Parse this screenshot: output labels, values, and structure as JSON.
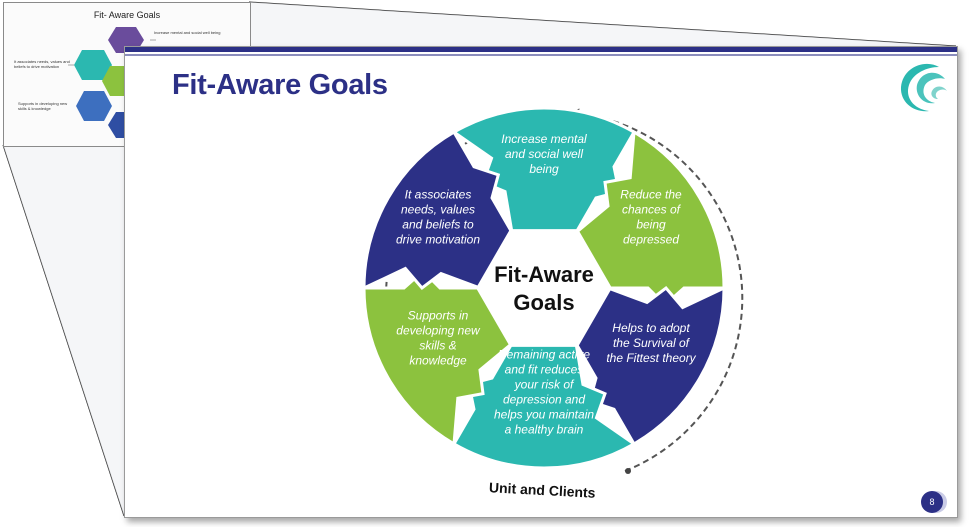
{
  "colors": {
    "navy": "#2c3086",
    "teal": "#2bb8b0",
    "green": "#8cc23e"
  },
  "thumbnail": {
    "title": "Fit- Aware Goals",
    "note_top": "Increase mental and social well being",
    "note_left_1": "It associates needs, values and beliefs to drive motivation",
    "note_left_2": "Supports in developing new skills & knowledge"
  },
  "slide": {
    "title": "Fit-Aware Goals",
    "logo_icon": "swirl-logo-icon",
    "page_number": "8",
    "footer_label": "Unit and Clients"
  },
  "diagram": {
    "center_label": [
      "Fit-Aware",
      "Goals"
    ],
    "segments": [
      {
        "id": "top",
        "color": "teal",
        "lines": [
          "Increase mental",
          "and social well",
          "being"
        ]
      },
      {
        "id": "upper-right",
        "color": "green",
        "lines": [
          "Reduce the",
          "chances of",
          "being",
          "depressed"
        ]
      },
      {
        "id": "lower-right",
        "color": "navy",
        "lines": [
          "Helps to adopt",
          "the Survival of",
          "the Fittest theory"
        ]
      },
      {
        "id": "bottom",
        "color": "teal",
        "lines": [
          "Remaining active",
          "and fit reduces",
          "your risk of",
          "depression and",
          "helps you maintain",
          "a healthy brain"
        ]
      },
      {
        "id": "lower-left",
        "color": "green",
        "lines": [
          "Supports in",
          "developing new",
          "skills &",
          "knowledge"
        ]
      },
      {
        "id": "upper-left",
        "color": "navy",
        "lines": [
          "It associates",
          "needs, values",
          "and beliefs to",
          "drive motivation"
        ]
      }
    ]
  }
}
